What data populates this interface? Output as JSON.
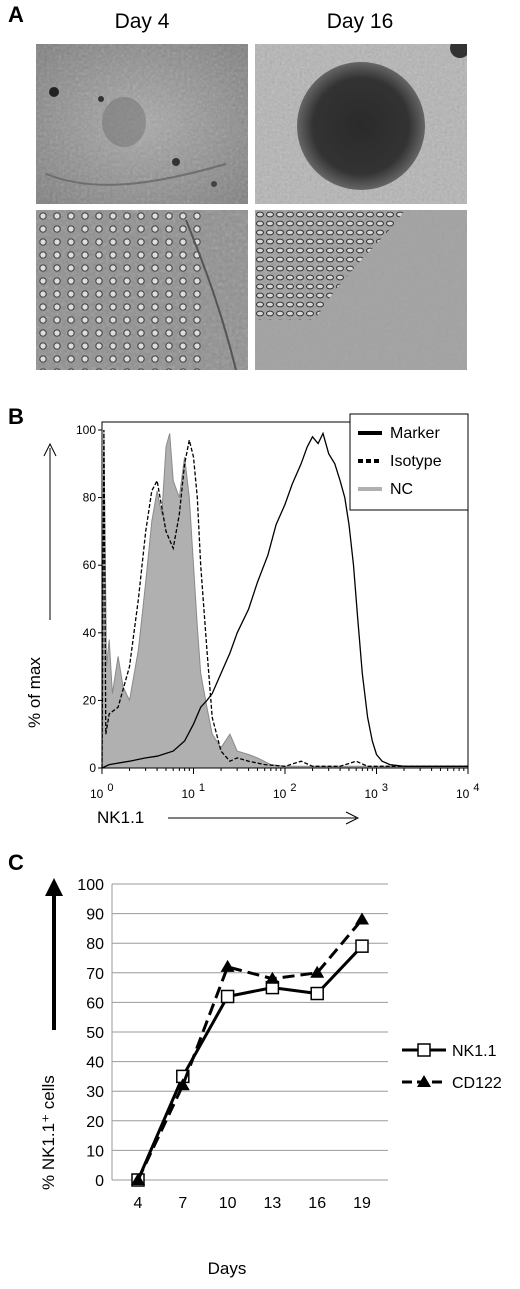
{
  "panel_a": {
    "letter": "A",
    "day_labels": [
      "Day 4",
      "Day 16"
    ]
  },
  "panel_b": {
    "letter": "B",
    "chart_data": {
      "type": "area",
      "xlabel": "NK1.1",
      "ylabel": "% of max",
      "x_scale": "log",
      "xlim": [
        1,
        10000
      ],
      "ylim": [
        0,
        100
      ],
      "y_ticks": [
        "0",
        "20",
        "40",
        "60",
        "80",
        "100"
      ],
      "x_ticks": [
        {
          "base": "10",
          "exp": "0"
        },
        {
          "base": "10",
          "exp": "1"
        },
        {
          "base": "10",
          "exp": "2"
        },
        {
          "base": "10",
          "exp": "3"
        },
        {
          "base": "10",
          "exp": "4"
        }
      ],
      "legend": [
        "Marker",
        "Isotype",
        "NC"
      ],
      "legend_position": "top-right",
      "series": [
        {
          "name": "Marker",
          "style": "solid",
          "color": "#000000",
          "points": [
            [
              1.0,
              0
            ],
            [
              1.2,
              1
            ],
            [
              2,
              2
            ],
            [
              3,
              3
            ],
            [
              4,
              3.5
            ],
            [
              6,
              5
            ],
            [
              8,
              8
            ],
            [
              10,
              13
            ],
            [
              12,
              18
            ],
            [
              14,
              20
            ],
            [
              16,
              22
            ],
            [
              20,
              28
            ],
            [
              25,
              34
            ],
            [
              30,
              40
            ],
            [
              40,
              47
            ],
            [
              50,
              55
            ],
            [
              65,
              63
            ],
            [
              80,
              72
            ],
            [
              100,
              78
            ],
            [
              120,
              84
            ],
            [
              150,
              90
            ],
            [
              175,
              95
            ],
            [
              200,
              98
            ],
            [
              230,
              96
            ],
            [
              260,
              99
            ],
            [
              300,
              93
            ],
            [
              350,
              90
            ],
            [
              400,
              85
            ],
            [
              450,
              80
            ],
            [
              500,
              72
            ],
            [
              560,
              60
            ],
            [
              620,
              45
            ],
            [
              700,
              28
            ],
            [
              800,
              15
            ],
            [
              900,
              8
            ],
            [
              1000,
              4
            ],
            [
              1150,
              2
            ],
            [
              1400,
              1
            ],
            [
              2000,
              0.5
            ],
            [
              10000,
              0.5
            ]
          ]
        },
        {
          "name": "Isotype",
          "style": "dashed",
          "color": "#000000",
          "points": [
            [
              1.0,
              0
            ],
            [
              1.05,
              100
            ],
            [
              1.1,
              10
            ],
            [
              1.2,
              16
            ],
            [
              1.5,
              18
            ],
            [
              2,
              30
            ],
            [
              2.5,
              50
            ],
            [
              3,
              70
            ],
            [
              3.5,
              82
            ],
            [
              4,
              85
            ],
            [
              5,
              70
            ],
            [
              6,
              65
            ],
            [
              7,
              75
            ],
            [
              8,
              90
            ],
            [
              9,
              97
            ],
            [
              10,
              92
            ],
            [
              11,
              80
            ],
            [
              12,
              60
            ],
            [
              14,
              35
            ],
            [
              16,
              15
            ],
            [
              20,
              5
            ],
            [
              25,
              2
            ],
            [
              30,
              3
            ],
            [
              40,
              2
            ],
            [
              60,
              1
            ],
            [
              100,
              0.5
            ],
            [
              150,
              2
            ],
            [
              200,
              0.5
            ],
            [
              400,
              0.5
            ],
            [
              600,
              2
            ],
            [
              800,
              0.5
            ],
            [
              10000,
              0.5
            ]
          ]
        },
        {
          "name": "NC",
          "style": "filled",
          "color": "#b0b0b0",
          "points": [
            [
              1.0,
              0
            ],
            [
              1.05,
              100
            ],
            [
              1.12,
              30
            ],
            [
              1.2,
              38
            ],
            [
              1.3,
              22
            ],
            [
              1.5,
              33
            ],
            [
              1.7,
              24
            ],
            [
              2,
              20
            ],
            [
              2.5,
              35
            ],
            [
              3,
              55
            ],
            [
              3.5,
              73
            ],
            [
              4,
              82
            ],
            [
              4.5,
              75
            ],
            [
              5,
              95
            ],
            [
              5.5,
              99
            ],
            [
              6,
              85
            ],
            [
              7,
              80
            ],
            [
              8,
              92
            ],
            [
              9,
              80
            ],
            [
              10,
              60
            ],
            [
              11,
              42
            ],
            [
              12,
              28
            ],
            [
              14,
              18
            ],
            [
              16,
              10
            ],
            [
              20,
              6
            ],
            [
              25,
              10
            ],
            [
              30,
              5
            ],
            [
              40,
              4
            ],
            [
              50,
              3
            ],
            [
              70,
              1
            ],
            [
              100,
              0.5
            ],
            [
              10000,
              0.5
            ]
          ]
        }
      ]
    }
  },
  "panel_c": {
    "letter": "C",
    "chart_data": {
      "type": "line",
      "xlabel": "Days",
      "ylabel": "% NK1.1⁺ cells",
      "categories": [
        "4",
        "7",
        "10",
        "13",
        "16",
        "19"
      ],
      "ylim": [
        0,
        100
      ],
      "y_ticks": [
        "0",
        "10",
        "20",
        "30",
        "40",
        "50",
        "60",
        "70",
        "80",
        "90",
        "100"
      ],
      "grid": true,
      "legend_position": "right",
      "series": [
        {
          "name": "NK1.1",
          "style": "solid",
          "marker": "open-square",
          "values": [
            0,
            35,
            62,
            65,
            63,
            79
          ]
        },
        {
          "name": "CD122",
          "style": "dashed",
          "marker": "filled-triangle",
          "values": [
            0,
            32,
            72,
            68,
            70,
            88
          ]
        }
      ]
    }
  }
}
